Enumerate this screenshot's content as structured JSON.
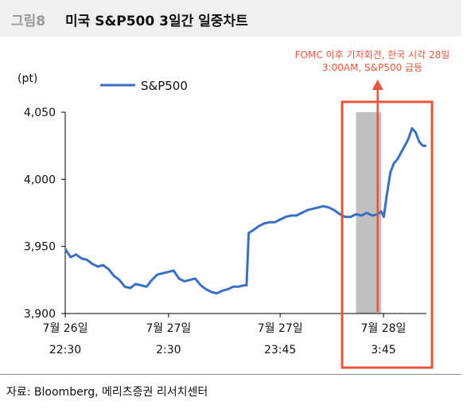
{
  "figure": {
    "label": "그림8",
    "title": "미국 S&P500 3일간 일중차트",
    "source": "자료: Bloomberg, 메리츠증권 리서치센터"
  },
  "chart_data": {
    "type": "line",
    "title": "미국 S&P500 3일간 일중차트",
    "ylabel": "(pt)",
    "ylim": [
      3900,
      4050
    ],
    "yticks": [
      "4,050",
      "4,000",
      "3,950",
      "3,900"
    ],
    "ytick_values": [
      4050,
      4000,
      3950,
      3900
    ],
    "xlim": [
      0,
      100
    ],
    "xticks": [
      {
        "x": 0,
        "line1": "7월 26일",
        "line2": "22:30"
      },
      {
        "x": 28.6,
        "line1": "7월 27일",
        "line2": "2:30"
      },
      {
        "x": 59.5,
        "line1": "7월 27일",
        "line2": "23:45"
      },
      {
        "x": 88.1,
        "line1": "7월 28일",
        "line2": "3:45"
      }
    ],
    "legend": "top-left",
    "grid": false,
    "series": [
      {
        "name": "S&P500",
        "color": "#3a6fc4",
        "x": [
          0,
          1.5,
          3,
          4.5,
          6,
          7.5,
          9,
          10.5,
          12,
          13.5,
          15,
          16.5,
          18,
          19.5,
          21,
          22.5,
          24,
          25.5,
          27,
          28.6,
          30,
          31.5,
          33,
          34.5,
          36,
          37.5,
          39,
          40.5,
          42,
          43.5,
          45,
          46.5,
          48,
          49.5,
          50.2,
          50.8,
          52,
          53.5,
          55,
          56.5,
          58,
          59.5,
          61,
          62.5,
          64,
          65.5,
          67,
          68.5,
          70,
          71.5,
          73,
          74.5,
          76,
          77.5,
          79,
          80.5,
          82,
          83.5,
          85,
          86.5,
          87.5,
          88.2,
          89,
          90,
          91,
          92,
          93,
          94,
          95,
          96,
          97,
          98,
          99,
          100
        ],
        "y": [
          3948,
          3942,
          3944,
          3941,
          3940,
          3937,
          3935,
          3936,
          3933,
          3928,
          3925,
          3920,
          3919,
          3922,
          3921,
          3920,
          3925,
          3929,
          3930,
          3931,
          3932,
          3926,
          3924,
          3925,
          3926,
          3921,
          3918,
          3916,
          3915,
          3917,
          3918,
          3920,
          3920,
          3921,
          3921,
          3960,
          3962,
          3965,
          3967,
          3968,
          3968,
          3970,
          3972,
          3973,
          3973,
          3975,
          3977,
          3978,
          3979,
          3980,
          3979,
          3977,
          3974,
          3972,
          3972,
          3974,
          3973,
          3975,
          3973,
          3974,
          3976,
          3972,
          3988,
          4005,
          4012,
          4015,
          4020,
          4025,
          4030,
          4038,
          4035,
          4028,
          4025,
          4025
        ]
      }
    ],
    "highlight_band": {
      "x_start": 80.5,
      "x_end": 87.5,
      "color": "#c0c0c0"
    },
    "annotation": {
      "text_line1": "FOMC 이후 기자회견, 한국 시각 28일",
      "text_line2": "3:00AM, S&P500 급등",
      "color": "#e8543a"
    }
  }
}
